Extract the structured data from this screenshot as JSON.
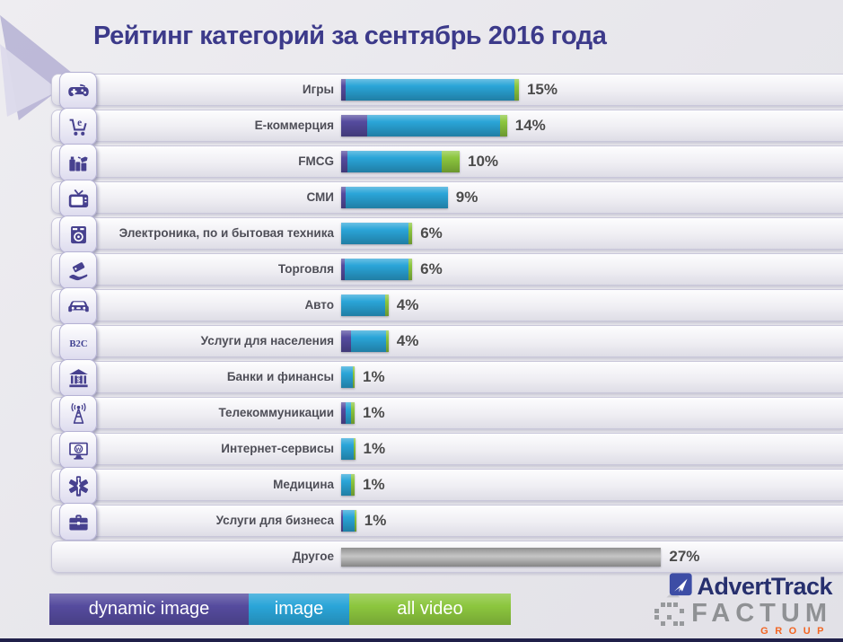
{
  "title": "Рейтинг категорий за сентябрь 2016 года",
  "chart_data": {
    "type": "bar",
    "orientation": "horizontal",
    "stacked": true,
    "unit": "%",
    "legend_position": "bottom",
    "categories": [
      "Игры",
      "Е-коммерция",
      "FMCG",
      "СМИ",
      "Электроника, по и бытовая техника",
      "Торговля",
      "Авто",
      "Услуги для населения",
      "Банки и финансы",
      "Телекоммуникации",
      "Интернет-сервисы",
      "Медицина",
      "Услуги для бизнеса",
      "Другое"
    ],
    "totals": [
      15,
      14,
      10,
      9,
      6,
      6,
      4,
      4,
      1,
      1,
      1,
      1,
      1,
      27
    ],
    "total_labels": [
      "15%",
      "14%",
      "10%",
      "9%",
      "6%",
      "6%",
      "4%",
      "4%",
      "1%",
      "1%",
      "1%",
      "1%",
      "1%",
      "27%"
    ],
    "series": [
      {
        "name": "dynamic image",
        "color": "#554b9e",
        "values": [
          0.4,
          2.2,
          0.5,
          0.4,
          0,
          0.3,
          0,
          0.8,
          0,
          0.3,
          0,
          0,
          0.1,
          0
        ]
      },
      {
        "name": "image",
        "color": "#2aa5d8",
        "values": [
          14.2,
          11.2,
          8.0,
          8.6,
          5.7,
          5.4,
          3.7,
          3.0,
          0.85,
          0.45,
          0.9,
          0.7,
          0.85,
          0
        ]
      },
      {
        "name": "all video",
        "color": "#8cc63e",
        "values": [
          0.4,
          0.6,
          1.5,
          0,
          0.3,
          0.3,
          0.3,
          0.2,
          0.15,
          0.25,
          0.1,
          0.3,
          0.05,
          0
        ]
      },
      {
        "name": "other",
        "color": "#a3a3a3",
        "values": [
          0,
          0,
          0,
          0,
          0,
          0,
          0,
          0,
          0,
          0,
          0,
          0,
          0,
          27
        ]
      }
    ]
  },
  "icons": [
    "gamepad-icon",
    "ecommerce-cart-icon",
    "fmcg-products-icon",
    "tv-icon",
    "appliances-icon",
    "trade-tag-icon",
    "car-icon",
    "b2c-icon",
    "bank-icon",
    "telecom-tower-icon",
    "internet-services-icon",
    "medicine-icon",
    "briefcase-icon",
    null
  ],
  "legend": {
    "items": [
      {
        "label": "dynamic image",
        "color": "#554b9e"
      },
      {
        "label": "image",
        "color": "#2aa5d8"
      },
      {
        "label": "all video",
        "color": "#8cc63e"
      }
    ]
  },
  "logo": {
    "brand": "AdvertTrack",
    "company": "FACTUM",
    "group": "GROUP"
  }
}
